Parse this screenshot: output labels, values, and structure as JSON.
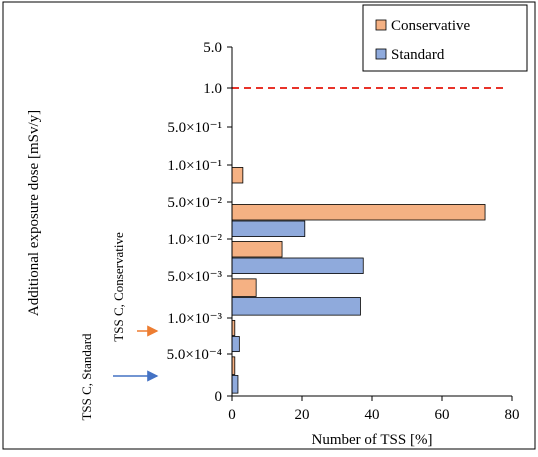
{
  "chart_data": {
    "type": "bar",
    "orientation": "horizontal",
    "xlabel": "Number of TSS [%]",
    "ylabel": "Additional exposure dose [mSv/y]",
    "xlim": [
      0,
      80
    ],
    "x_ticks": [
      "0",
      "20",
      "40",
      "60",
      "80"
    ],
    "y_ticks": [
      "0",
      "5.0×10⁻⁴",
      "1.0×10⁻³",
      "5.0×10⁻³",
      "1.0×10⁻²",
      "5.0×10⁻²",
      "1.0×10⁻¹",
      "5.0×10⁻¹",
      "1.0",
      "5.0"
    ],
    "y_tick_colors": [
      "#000000",
      "#000000",
      "#000000",
      "#000000",
      "#000000",
      "#000000",
      "#000000",
      "#000000",
      "#e8332a",
      "#000000"
    ],
    "categories": [
      "≤5.0×10⁻⁴",
      "5.0×10⁻⁴–1.0×10⁻³",
      "1.0×10⁻³–5.0×10⁻³",
      "5.0×10⁻³–1.0×10⁻²",
      "1.0×10⁻²–5.0×10⁻²",
      "5.0×10⁻²–1.0×10⁻¹"
    ],
    "series": [
      {
        "name": "Conservative",
        "color": "#f5b183",
        "values": [
          0.8,
          0.8,
          6.9,
          14.3,
          72.3,
          3.1
        ]
      },
      {
        "name": "Standard",
        "color": "#8faadc",
        "values": [
          1.7,
          2.1,
          36.7,
          37.5,
          20.8,
          0
        ]
      }
    ],
    "reference_line": {
      "value_label": "1.0",
      "style": "dashed",
      "color": "#e8332a"
    },
    "legend": {
      "placement": "top-right",
      "entries": [
        "Conservative",
        "Standard"
      ]
    },
    "annotations": [
      {
        "text": "TSS C, Conservative",
        "arrow_color": "#ed7d31"
      },
      {
        "text": "TSS C, Standard",
        "arrow_color": "#4472c4"
      }
    ],
    "grid": false
  }
}
